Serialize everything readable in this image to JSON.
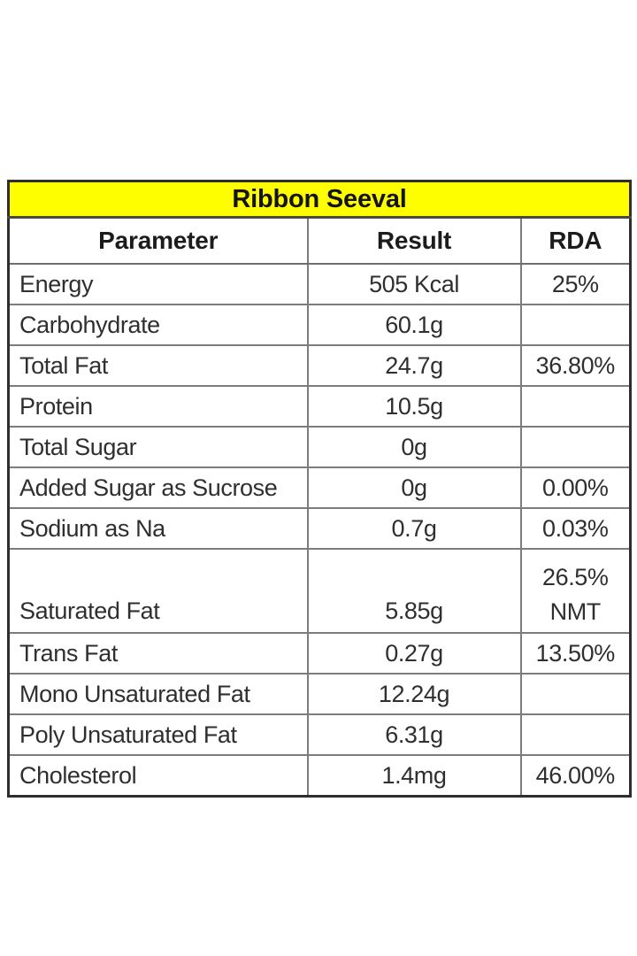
{
  "page": {
    "background_color": "#ffffff"
  },
  "table": {
    "title": "Ribbon Seeval",
    "title_background_color": "#fffe00",
    "outer_border_color": "#2e2e2e",
    "grid_line_color": "#7c7c7c",
    "columns": [
      "Parameter",
      "Result",
      "RDA"
    ],
    "rows": [
      {
        "parameter": "Energy",
        "result": "505 Kcal",
        "rda": "25%"
      },
      {
        "parameter": "Carbohydrate",
        "result": "60.1g",
        "rda": ""
      },
      {
        "parameter": "Total Fat",
        "result": "24.7g",
        "rda": "36.80%"
      },
      {
        "parameter": "Protein",
        "result": "10.5g",
        "rda": ""
      },
      {
        "parameter": "Total Sugar",
        "result": "0g",
        "rda": ""
      },
      {
        "parameter": "Added Sugar as Sucrose",
        "result": "0g",
        "rda": "0.00%"
      },
      {
        "parameter": "Sodium as Na",
        "result": "0.7g",
        "rda": "0.03%"
      },
      {
        "parameter": "Saturated Fat",
        "result": "5.85g",
        "rda": "26.5% NMT",
        "rda_lines": [
          "26.5%",
          "NMT"
        ],
        "tall": true
      },
      {
        "parameter": "Trans Fat",
        "result": "0.27g",
        "rda": "13.50%"
      },
      {
        "parameter": "Mono Unsaturated Fat",
        "result": "12.24g",
        "rda": ""
      },
      {
        "parameter": "Poly Unsaturated Fat",
        "result": "6.31g",
        "rda": ""
      },
      {
        "parameter": "Cholesterol",
        "result": "1.4mg",
        "rda": "46.00%"
      }
    ]
  }
}
